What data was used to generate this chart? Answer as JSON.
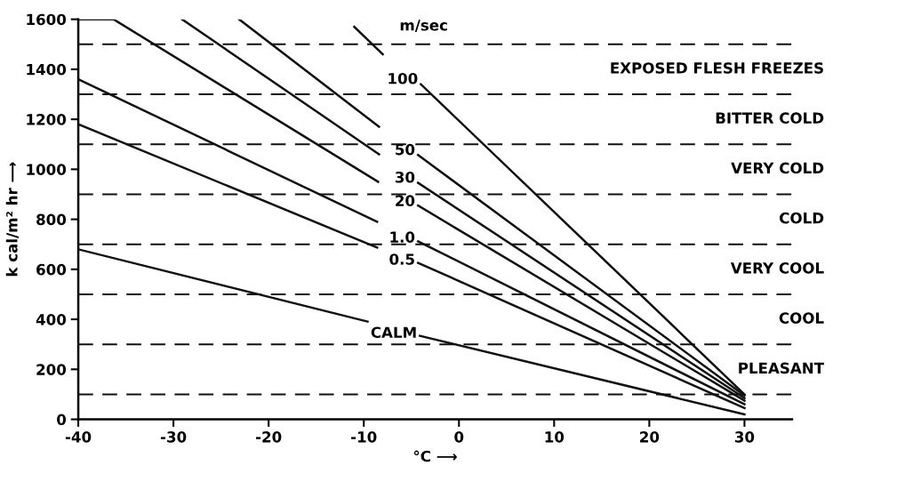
{
  "chart_data": {
    "type": "line",
    "xlabel": "°C ⟶",
    "ylabel": "k cal/m² hr ⟶",
    "xlim": [
      -40,
      35
    ],
    "ylim": [
      0,
      1600
    ],
    "xticks": [
      -40,
      -30,
      -20,
      -10,
      0,
      10,
      20,
      30
    ],
    "yticks": [
      0,
      200,
      400,
      600,
      800,
      1000,
      1200,
      1400,
      1600
    ],
    "grid": false,
    "marker": "none",
    "line_style": "solid",
    "series": [
      {
        "name": "CALM",
        "color": "#111111",
        "x": [
          -40,
          -9.6,
          -6.7,
          -4.1,
          30
        ],
        "values": [
          680,
          391,
          null,
          334,
          20
        ]
      },
      {
        "name": "0.5",
        "color": "#111111",
        "x": [
          -40,
          -8.6,
          -6.4,
          -4.3,
          30
        ],
        "values": [
          1180,
          687,
          null,
          626,
          45
        ]
      },
      {
        "name": "1.0",
        "color": "#111111",
        "x": [
          -40,
          -8.6,
          -6.4,
          -4.3,
          30
        ],
        "values": [
          1360,
          790,
          null,
          712,
          60
        ]
      },
      {
        "name": "20",
        "color": "#111111",
        "x": [
          -40,
          -36.3,
          -8.5,
          -6.4,
          -4.3,
          30
        ],
        "values": [
          1600,
          1600,
          950,
          null,
          855,
          75
        ]
      },
      {
        "name": "30",
        "color": "#111111",
        "x": [
          -29.1,
          -8.4,
          -6.4,
          -4.3,
          30
        ],
        "values": [
          1600,
          1060,
          null,
          946,
          85
        ]
      },
      {
        "name": "50",
        "color": "#111111",
        "x": [
          -23.1,
          -8.4,
          -6.4,
          -4.3,
          30
        ],
        "values": [
          1600,
          1170,
          null,
          1057,
          95
        ]
      },
      {
        "name": "100",
        "color": "#111111",
        "x": [
          -11,
          -8,
          -6,
          -4,
          30
        ],
        "values": [
          1570,
          1460,
          null,
          1340,
          100
        ]
      }
    ],
    "ref_lines": [
      {
        "axis": "y",
        "value": 100,
        "color": "#111111",
        "line_style": "dashed",
        "label": "PLEASANT"
      },
      {
        "axis": "y",
        "value": 300,
        "color": "#111111",
        "line_style": "dashed",
        "label": "COOL"
      },
      {
        "axis": "y",
        "value": 500,
        "color": "#111111",
        "line_style": "dashed",
        "label": "VERY COOL"
      },
      {
        "axis": "y",
        "value": 700,
        "color": "#111111",
        "line_style": "dashed",
        "label": "COLD"
      },
      {
        "axis": "y",
        "value": 900,
        "color": "#111111",
        "line_style": "dashed",
        "label": "VERY COLD"
      },
      {
        "axis": "y",
        "value": 1100,
        "color": "#111111",
        "line_style": "dashed",
        "label": "BITTER COLD"
      },
      {
        "axis": "y",
        "value": 1300,
        "color": "#111111",
        "line_style": "dashed",
        "label": "EXPOSED FLESH FREEZES"
      },
      {
        "axis": "y",
        "value": 1500,
        "color": "#111111",
        "line_style": "dashed"
      }
    ],
    "annotations": [
      "m/sec"
    ]
  }
}
